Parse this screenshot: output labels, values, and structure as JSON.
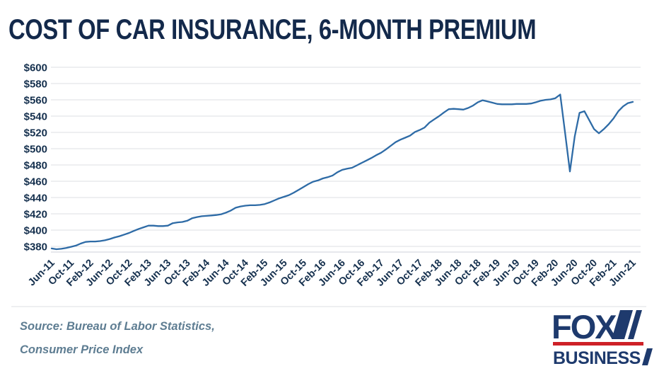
{
  "title": "COST OF CAR INSURANCE, 6-MONTH PREMIUM",
  "source": {
    "line1": "Source: Bureau of Labor Statistics,",
    "line2": "Consumer Price Index"
  },
  "logo": {
    "fox": "FOX",
    "business": "BUSINESS",
    "navy": "#1e3a6d",
    "red": "#ce2127"
  },
  "colors": {
    "title_navy": "#13294b",
    "axis_navy": "#15304e",
    "gridline": "#dcdfe3",
    "source_slate": "#5e7d92",
    "line_blue": "#2e6ba6"
  },
  "chart_data": {
    "type": "line",
    "title": "COST OF CAR INSURANCE, 6-MONTH PREMIUM",
    "x_unit": "month",
    "frequency": "monthly",
    "x_start_label": "Jun-11",
    "x_end_label": "Jun-21",
    "x_tick_every_n_points": 4,
    "x_tick_labels": [
      "Jun-11",
      "Oct-11",
      "Feb-12",
      "Jun-12",
      "Oct-12",
      "Feb-13",
      "Jun-13",
      "Oct-13",
      "Feb-14",
      "Jun-14",
      "Oct-14",
      "Feb-15",
      "Jun-15",
      "Oct-15",
      "Feb-16",
      "Jun-16",
      "Oct-16",
      "Feb-17",
      "Jun-17",
      "Oct-17",
      "Feb-18",
      "Jun-18",
      "Oct-18",
      "Feb-19",
      "Jun-19",
      "Oct-19",
      "Feb-20",
      "Jun-20",
      "Oct-20",
      "Feb-21",
      "Jun-21"
    ],
    "y_ticks": {
      "labels": [
        "$600",
        "$580",
        "$560",
        "$540",
        "$520",
        "$500",
        "$480",
        "$460",
        "$440",
        "$420",
        "$400",
        "$380"
      ],
      "values": [
        600,
        580,
        560,
        540,
        520,
        500,
        480,
        460,
        440,
        420,
        400,
        380
      ]
    },
    "ylim": [
      380,
      600
    ],
    "grid": true,
    "legend": false,
    "line_color": "#2e6ba6",
    "values": [
      377.5,
      376.5,
      377,
      378,
      379.5,
      381,
      383.5,
      385.5,
      386,
      386,
      386.5,
      387.5,
      389,
      391,
      392.5,
      394.5,
      396.5,
      399,
      401.5,
      403.5,
      405.5,
      405.5,
      405,
      405,
      405.5,
      408.5,
      409.5,
      410,
      411.5,
      414.5,
      416,
      417,
      417.5,
      418,
      418.5,
      419.5,
      421.5,
      424,
      427.5,
      429,
      430,
      430.5,
      430.5,
      431,
      432,
      434,
      436.5,
      439,
      441,
      443,
      446,
      449.5,
      453,
      456.5,
      459.5,
      461,
      463.5,
      465,
      467,
      471,
      474,
      475.5,
      476.5,
      479.5,
      482.5,
      485.5,
      488.5,
      492,
      495,
      499,
      503.5,
      508,
      511,
      513.5,
      516,
      520.5,
      523,
      526,
      532,
      536,
      540,
      544.5,
      548.5,
      549,
      548.5,
      548,
      550,
      553,
      557,
      559.5,
      558,
      556.5,
      555,
      554.5,
      554.5,
      554.5,
      555,
      555,
      555,
      555.5,
      557,
      559,
      560,
      560.5,
      562,
      566.5,
      520,
      472,
      515,
      544,
      546,
      535,
      524,
      519,
      524,
      530,
      537,
      546,
      552,
      556,
      557.5
    ]
  }
}
